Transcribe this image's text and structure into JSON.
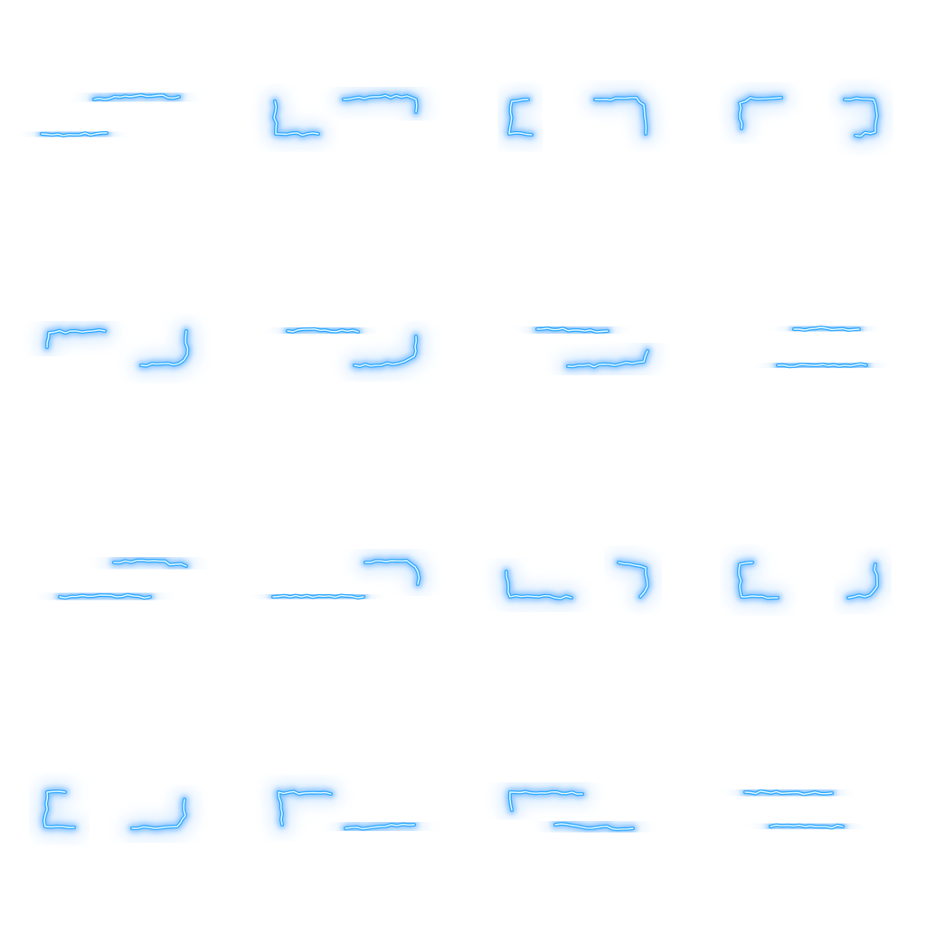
{
  "sprite_sheet": {
    "kind": "electric-border-effect",
    "grid": {
      "columns": 4,
      "rows": 4
    },
    "frame_count": 16,
    "background": "#ffffff",
    "colors": {
      "glow": "#6ab4ff",
      "halo": "#b9dcff",
      "core": "#2ea8ff",
      "highlight": "#e8fbff"
    }
  }
}
